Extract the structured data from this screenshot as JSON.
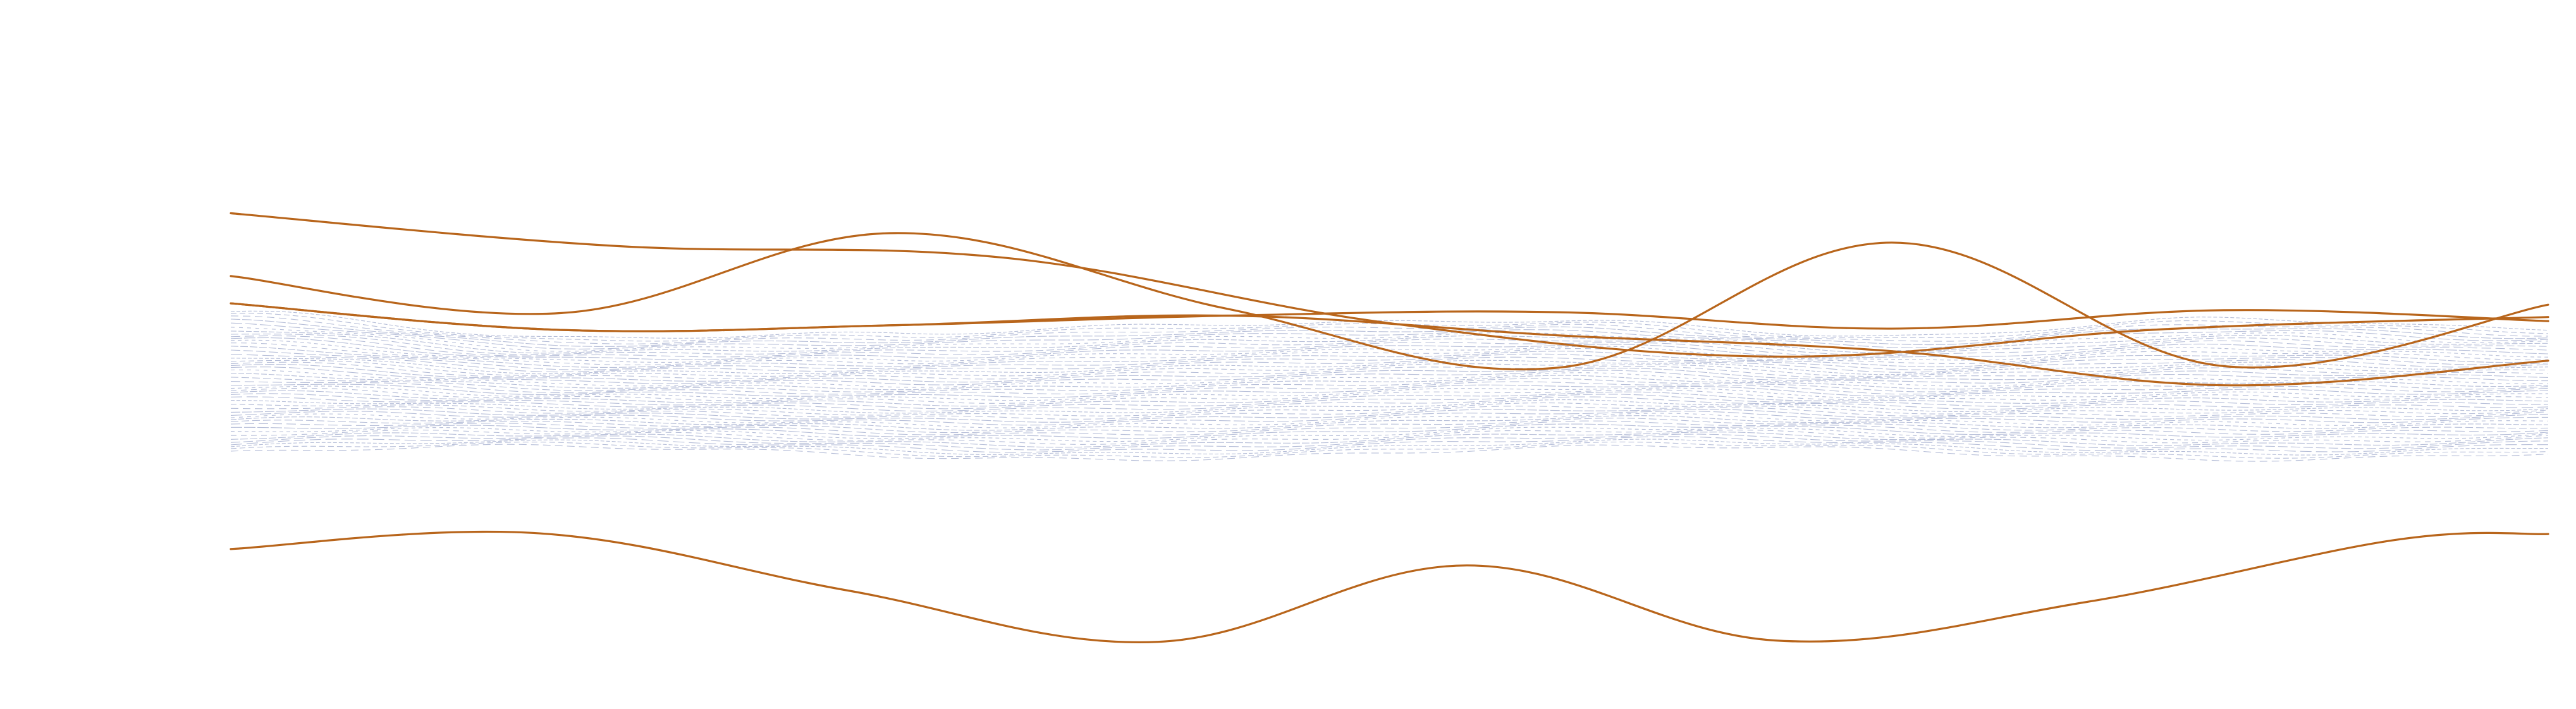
{
  "chart_data": {
    "type": "line",
    "title": "",
    "xlabel": "",
    "ylabel": "",
    "grid": false,
    "legend": "none",
    "xlim": [
      0,
      6
    ],
    "ylim": [
      0,
      1
    ],
    "colors": {
      "series": "#b8651b",
      "texture": "#7a88b8"
    },
    "series": [
      {
        "x": [
          0,
          1,
          2,
          3,
          4,
          5,
          6
        ],
        "y": [
          0.706,
          0.658,
          0.641,
          0.545,
          0.496,
          0.536,
          0.554
        ]
      },
      {
        "x": [
          0,
          0.86,
          1.72,
          2.58,
          3.44,
          4.3,
          5.16,
          6
        ],
        "y": [
          0.614,
          0.56,
          0.677,
          0.566,
          0.48,
          0.663,
          0.482,
          0.572
        ]
      },
      {
        "x": [
          0,
          0.86,
          1.72,
          2.58,
          3.44,
          4.3,
          5.16,
          6
        ],
        "y": [
          0.574,
          0.535,
          0.542,
          0.556,
          0.561,
          0.537,
          0.564,
          0.548
        ]
      },
      {
        "x": [
          0,
          0.86,
          1.72,
          2.58,
          3.44,
          4.3,
          5.16,
          6
        ],
        "y": [
          0.574,
          0.535,
          0.542,
          0.556,
          0.527,
          0.504,
          0.454,
          0.49
        ]
      },
      {
        "x": [
          0,
          0.8,
          1.6,
          2.4,
          3.2,
          4.0,
          4.8,
          5.6,
          6
        ],
        "y": [
          0.214,
          0.237,
          0.153,
          0.078,
          0.19,
          0.08,
          0.136,
          0.227,
          0.236
        ]
      }
    ]
  }
}
